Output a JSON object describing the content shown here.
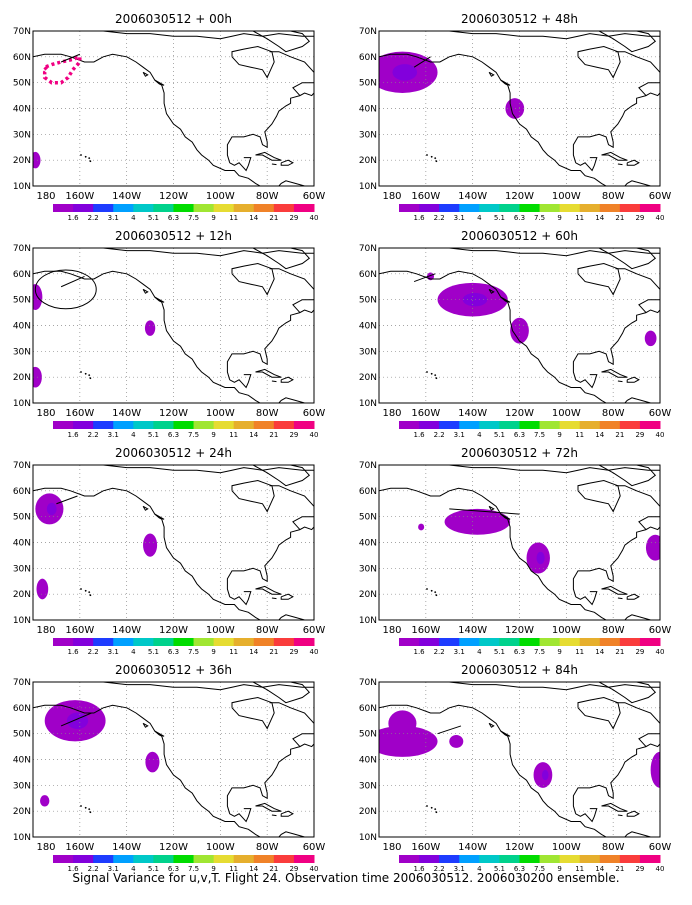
{
  "caption": "Signal Variance for u,v,T. Flight 24. Observation time 2006030512. 2006030200 ensemble.",
  "axes": {
    "lat_labels": [
      "70N",
      "60N",
      "50N",
      "40N",
      "30N",
      "20N",
      "10N"
    ],
    "lon_labels": [
      "180",
      "160W",
      "140W",
      "120W",
      "100W",
      "80W",
      "60W"
    ],
    "lat_range": [
      10,
      70
    ],
    "lon_range": [
      -180,
      -60
    ],
    "grid": "dotted"
  },
  "colorbar": {
    "labels": [
      "1.6",
      "2.2",
      "3.1",
      "4",
      "5.1",
      "6.3",
      "7.5",
      "9",
      "11",
      "14",
      "21",
      "29",
      "40"
    ],
    "colors": [
      "#a000c8",
      "#8200dc",
      "#1e3cff",
      "#00a0ff",
      "#00c8c8",
      "#00d28c",
      "#00dc00",
      "#a0e632",
      "#e6dc32",
      "#e6af2d",
      "#f08228",
      "#fa3c3c",
      "#f00082"
    ]
  },
  "panels": [
    {
      "id": "00h",
      "title": "2006030512 + 00h"
    },
    {
      "id": "48h",
      "title": "2006030512 + 48h"
    },
    {
      "id": "12h",
      "title": "2006030512 + 12h"
    },
    {
      "id": "60h",
      "title": "2006030512 + 60h"
    },
    {
      "id": "24h",
      "title": "2006030512 + 24h"
    },
    {
      "id": "72h",
      "title": "2006030512 + 72h"
    },
    {
      "id": "36h",
      "title": "2006030512 + 36h"
    },
    {
      "id": "84h",
      "title": "2006030512 + 84h"
    }
  ],
  "colors": {
    "signal_outer": "#a000c8",
    "signal_inner": "#8200dc",
    "flight_track": "#f00082"
  }
}
